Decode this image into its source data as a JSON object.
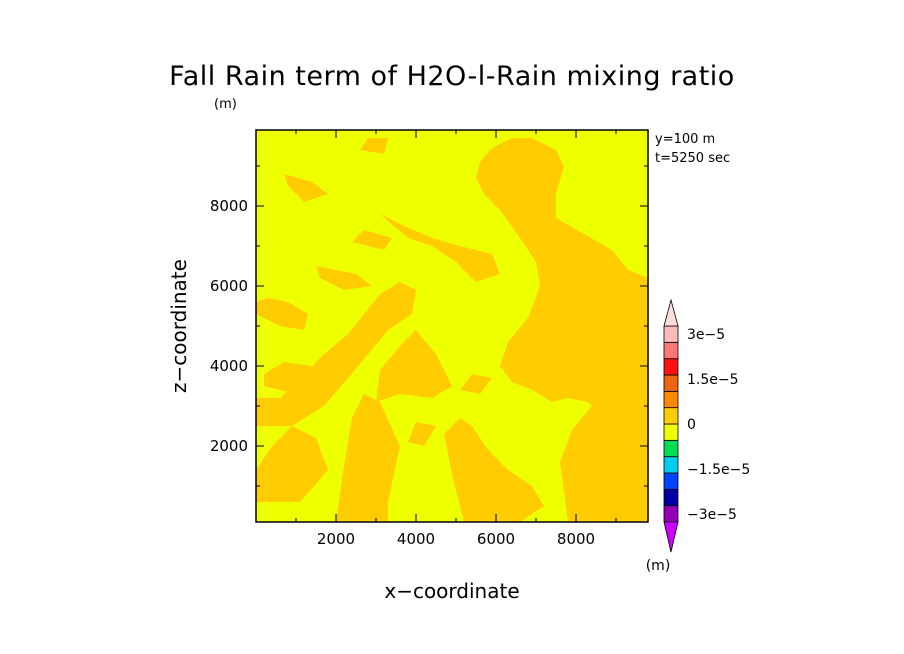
{
  "chart_data": {
    "type": "heatmap",
    "title": "Fall Rain term of H2O-l-Rain mixing ratio",
    "yunit": "(m)",
    "xlabel": "x−coordinate",
    "ylabel": "z−coordinate",
    "xlim": [
      0,
      9800
    ],
    "ylim": [
      100,
      9900
    ],
    "xticks": [
      2000,
      4000,
      6000,
      8000
    ],
    "yticks": [
      2000,
      4000,
      6000,
      8000
    ],
    "xtick_labels": [
      "2000",
      "4000",
      "6000",
      "8000"
    ],
    "ytick_labels": [
      "2000",
      "4000",
      "6000",
      "8000"
    ],
    "annotations": [
      "y=100 m",
      "t=5250 sec"
    ],
    "field_colors": {
      "background": "#eeff00",
      "patch": "#ffcc00"
    },
    "patches": [
      {
        "x": [
          6000,
          6400,
          6900,
          7500,
          7700,
          7500,
          7500,
          8200,
          8900,
          9300,
          9800,
          9800,
          9300,
          8900,
          8700,
          8300,
          7800,
          7400,
          6900,
          6400,
          6100,
          6300,
          6800,
          7100,
          7000,
          6600,
          6100,
          5700,
          5500,
          5600,
          5850
        ],
        "z": [
          9500,
          9700,
          9700,
          9400,
          9000,
          8300,
          7700,
          7300,
          6900,
          6400,
          6200,
          2600,
          2300,
          2100,
          2700,
          3100,
          3200,
          3100,
          3400,
          3600,
          4000,
          4600,
          5200,
          6000,
          6600,
          7200,
          7900,
          8300,
          8700,
          9100,
          9400
        ]
      },
      {
        "x": [
          0,
          900,
          1700,
          2300,
          2800,
          3300,
          3900,
          4000,
          3600,
          3100,
          2700,
          2300,
          1700,
          1100,
          600,
          0
        ],
        "z": [
          2500,
          2500,
          3000,
          3700,
          4300,
          4900,
          5300,
          5900,
          6100,
          5800,
          5300,
          4800,
          4300,
          3700,
          3200,
          3200
        ]
      },
      {
        "x": [
          7800,
          8400,
          9100,
          9800,
          9800,
          9100,
          8400,
          7900,
          7600
        ],
        "z": [
          100,
          100,
          100,
          100,
          2800,
          3200,
          3000,
          2400,
          1600
        ]
      },
      {
        "x": [
          5200,
          6000,
          6600,
          7200,
          6900,
          6300,
          5800,
          5400,
          5100,
          4700,
          4900
        ],
        "z": [
          100,
          100,
          100,
          500,
          1000,
          1400,
          1900,
          2500,
          2700,
          2300,
          1300
        ]
      },
      {
        "x": [
          2000,
          2700,
          3300,
          3300,
          3600,
          3100,
          2700,
          2400,
          2200
        ],
        "z": [
          100,
          100,
          100,
          600,
          2000,
          3100,
          3300,
          2700,
          1500
        ]
      },
      {
        "x": [
          0,
          1100,
          1800,
          1500,
          900,
          400,
          0
        ],
        "z": [
          600,
          600,
          1400,
          2200,
          2500,
          2000,
          1400
        ]
      },
      {
        "x": [
          3000,
          3600,
          4400,
          4900,
          4500,
          4000,
          3600,
          3100
        ],
        "z": [
          3100,
          3300,
          3200,
          3500,
          4300,
          4900,
          4500,
          3900
        ]
      },
      {
        "x": [
          3100,
          3700,
          4400,
          5100,
          5900,
          6100,
          5500,
          5000,
          4400,
          3800
        ],
        "z": [
          7800,
          7500,
          7200,
          7000,
          6800,
          6300,
          6100,
          6600,
          7000,
          7200
        ]
      },
      {
        "x": [
          3800,
          4200,
          4500,
          4000
        ],
        "z": [
          2100,
          2000,
          2500,
          2600
        ]
      },
      {
        "x": [
          5100,
          5600,
          5900,
          5400
        ],
        "z": [
          3400,
          3300,
          3700,
          3800
        ]
      },
      {
        "x": [
          0,
          600,
          1200,
          1300,
          800,
          300,
          0
        ],
        "z": [
          5300,
          5000,
          4900,
          5300,
          5600,
          5700,
          5600
        ]
      },
      {
        "x": [
          700,
          1400,
          1800,
          1200,
          800
        ],
        "z": [
          8800,
          8600,
          8300,
          8100,
          8500
        ]
      },
      {
        "x": [
          1500,
          2500,
          2900,
          2200,
          1600
        ],
        "z": [
          6500,
          6300,
          6000,
          5900,
          6200
        ]
      },
      {
        "x": [
          2400,
          3200,
          3400,
          2700
        ],
        "z": [
          7100,
          6900,
          7200,
          7400
        ]
      },
      {
        "x": [
          2600,
          3200,
          3300,
          2800
        ],
        "z": [
          9400,
          9300,
          9700,
          9700
        ]
      },
      {
        "x": [
          8700,
          9300,
          9800,
          9800,
          9300,
          8800
        ],
        "z": [
          5600,
          5200,
          5000,
          6000,
          6200,
          5900
        ]
      },
      {
        "x": [
          200,
          1000,
          1600,
          1400,
          700,
          200
        ],
        "z": [
          3500,
          3300,
          3600,
          4000,
          4100,
          3800
        ]
      }
    ],
    "colorbar": {
      "unit": "(m)",
      "levels": [
        -3e-05,
        -2.25e-05,
        -1.5e-05,
        -7.5e-06,
        0,
        7.5e-06,
        1.5e-05,
        2.25e-05,
        3e-05
      ],
      "tick_labels": [
        "3e−5",
        "1.5e−5",
        "0",
        "−1.5e−5",
        "−3e−5"
      ],
      "tick_values": [
        3e-05,
        1.5e-05,
        0,
        -1.5e-05,
        -3e-05
      ],
      "colors_bottom_to_top": [
        "#9400b8",
        "#0000a8",
        "#0044ff",
        "#00ccee",
        "#00dd55",
        "#eeff00",
        "#ffcc00",
        "#ff8800",
        "#ee6611",
        "#ff1111",
        "#ff7777",
        "#ffbbbb"
      ],
      "arrow_low_color": "#cc00ff",
      "arrow_high_color": "#ffdddd"
    }
  }
}
